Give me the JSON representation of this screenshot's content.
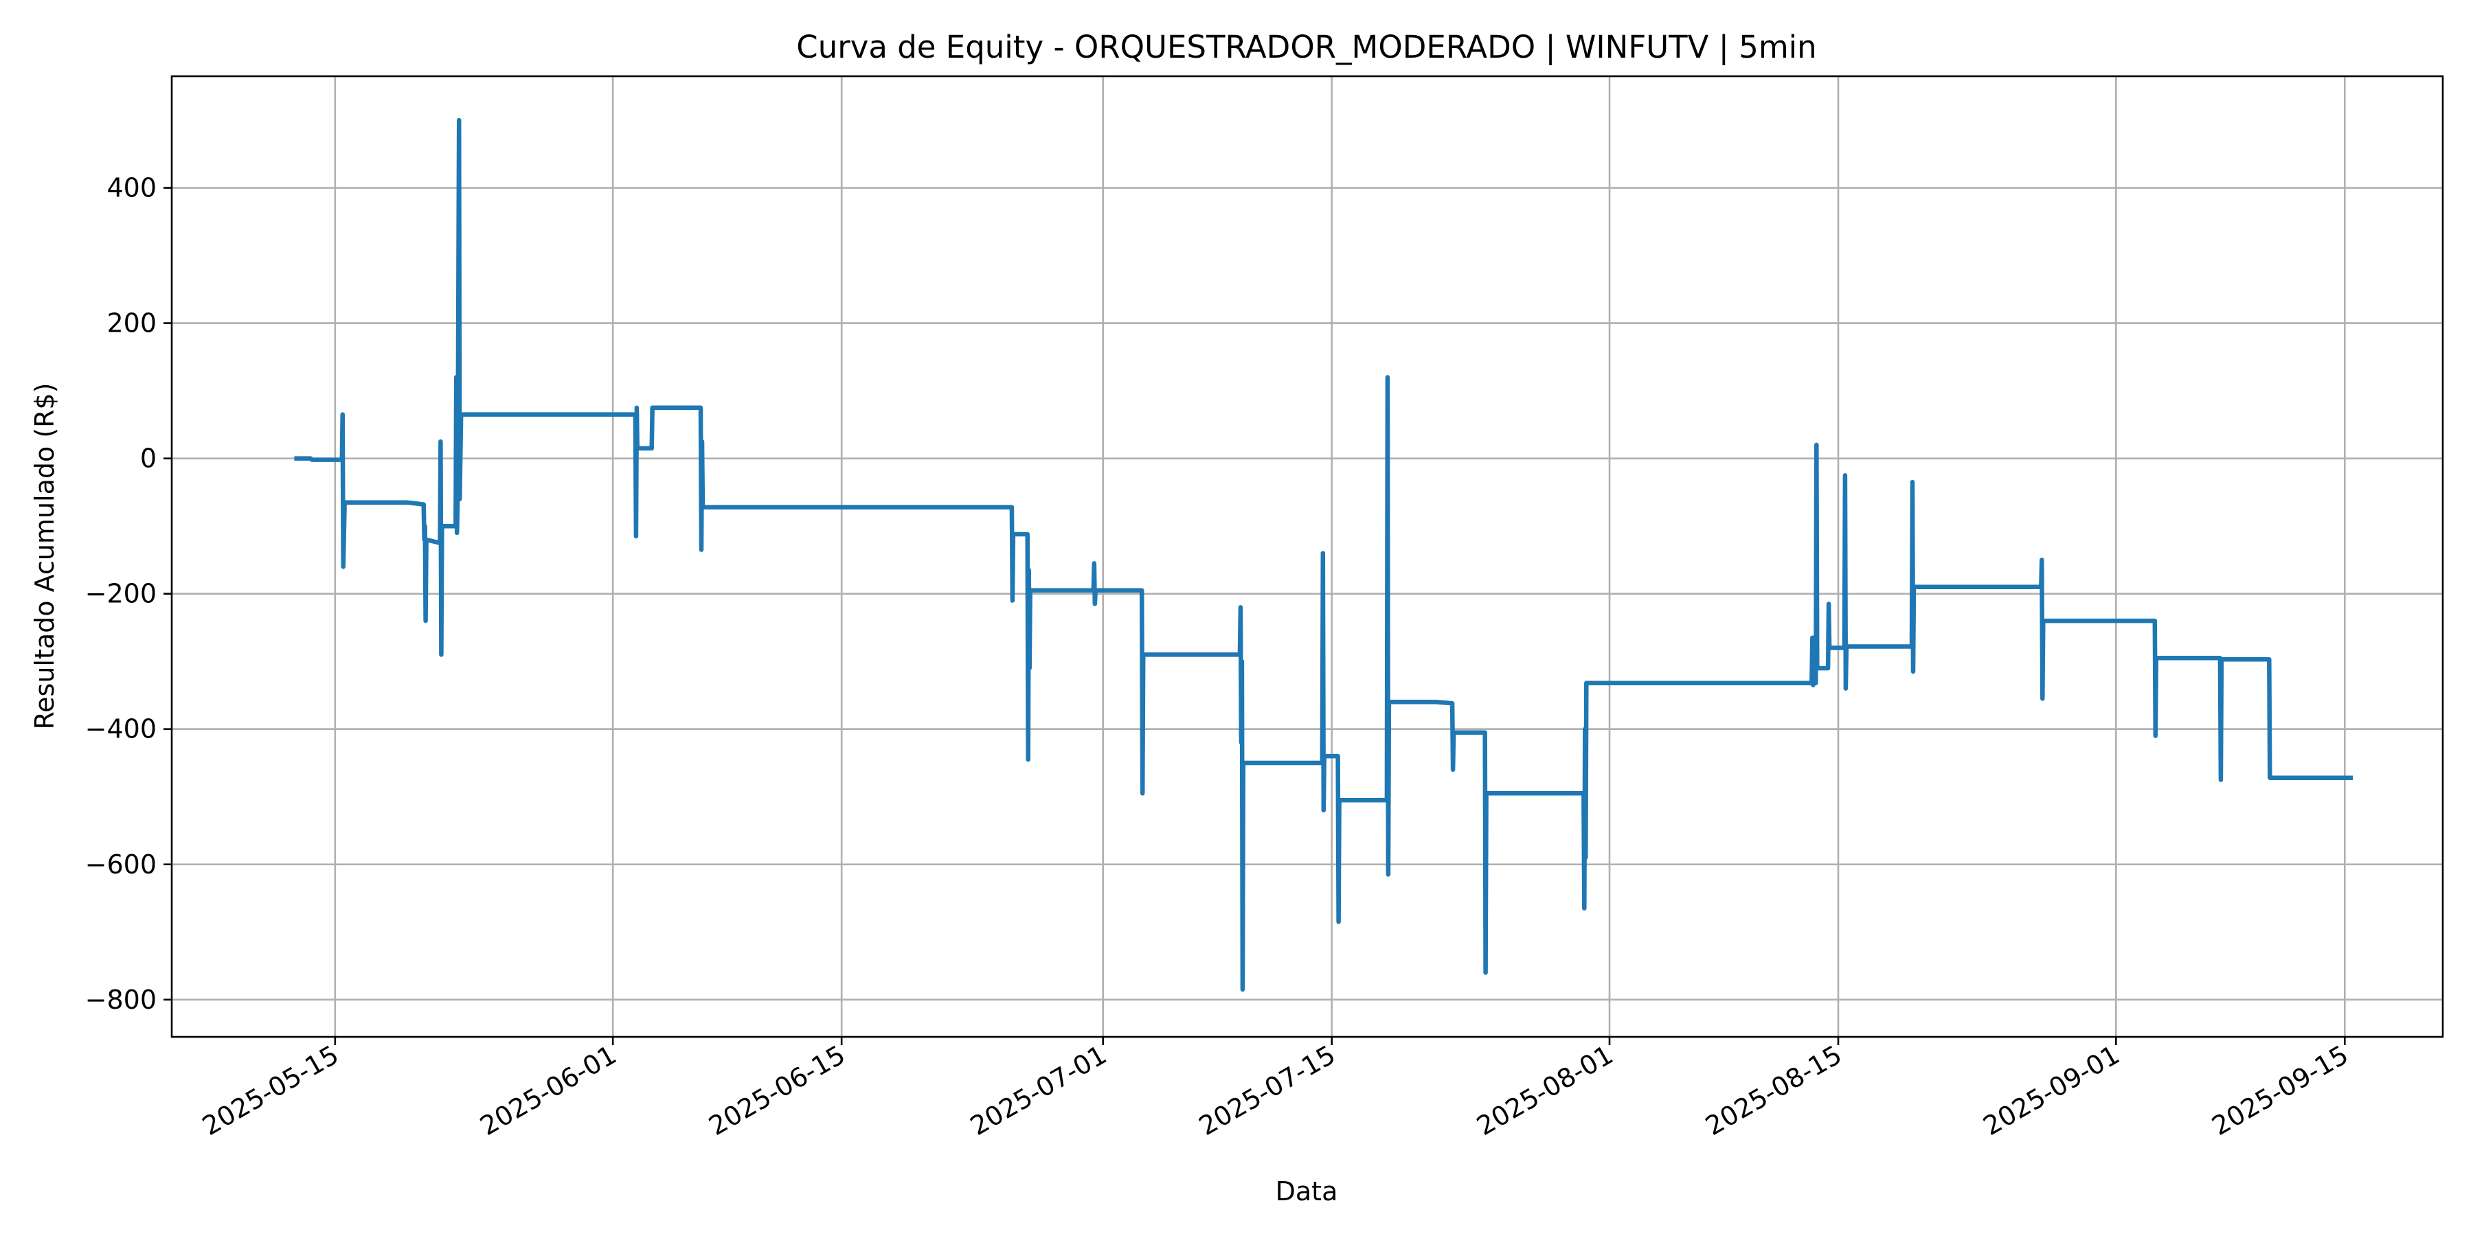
{
  "chart_data": {
    "type": "line",
    "title": "Curva de Equity - ORQUESTRADOR_MODERADO | WINFUTV | 5min",
    "xlabel": "Data",
    "ylabel": "Resultado Acumulado (R$)",
    "x_is_date": true,
    "xlim": [
      "2025-05-05",
      "2025-09-21"
    ],
    "ylim": [
      -855,
      565
    ],
    "x_ticks": [
      "2025-05-15",
      "2025-06-01",
      "2025-06-15",
      "2025-07-01",
      "2025-07-15",
      "2025-08-01",
      "2025-08-15",
      "2025-09-01",
      "2025-09-15"
    ],
    "y_ticks": [
      {
        "value": 400,
        "label": "400"
      },
      {
        "value": 200,
        "label": "200"
      },
      {
        "value": 0,
        "label": "0"
      },
      {
        "value": -200,
        "label": "−200"
      },
      {
        "value": -400,
        "label": "−400"
      },
      {
        "value": -600,
        "label": "−600"
      },
      {
        "value": -800,
        "label": "−800"
      }
    ],
    "grid": true,
    "color": "#1f77b4",
    "series": [
      {
        "values": [
          [
            "2025-05-12 12:00",
            0
          ],
          [
            "2025-05-13 12:00",
            0
          ],
          [
            "2025-05-13 14:00",
            -2
          ],
          [
            "2025-05-15 10:00",
            -2
          ],
          [
            "2025-05-15 11:00",
            65
          ],
          [
            "2025-05-15 12:00",
            -160
          ],
          [
            "2025-05-15 14:00",
            -65
          ],
          [
            "2025-05-19 10:00",
            -65
          ],
          [
            "2025-05-20 10:00",
            -68
          ],
          [
            "2025-05-20 11:00",
            -120
          ],
          [
            "2025-05-20 12:00",
            -100
          ],
          [
            "2025-05-20 13:00",
            -240
          ],
          [
            "2025-05-20 14:00",
            -120
          ],
          [
            "2025-05-21 10:00",
            -125
          ],
          [
            "2025-05-21 11:00",
            25
          ],
          [
            "2025-05-21 12:00",
            -290
          ],
          [
            "2025-05-21 13:00",
            -100
          ],
          [
            "2025-05-22 09:00",
            -100
          ],
          [
            "2025-05-22 10:00",
            120
          ],
          [
            "2025-05-22 11:00",
            -110
          ],
          [
            "2025-05-22 12:00",
            -60
          ],
          [
            "2025-05-22 14:00",
            500
          ],
          [
            "2025-05-22 15:00",
            -60
          ],
          [
            "2025-05-22 17:00",
            65
          ],
          [
            "2025-06-02 09:00",
            65
          ],
          [
            "2025-06-02 10:00",
            -115
          ],
          [
            "2025-06-02 11:00",
            75
          ],
          [
            "2025-06-02 12:00",
            15
          ],
          [
            "2025-06-03 09:00",
            15
          ],
          [
            "2025-06-03 10:00",
            75
          ],
          [
            "2025-06-06 09:00",
            75
          ],
          [
            "2025-06-06 10:00",
            -135
          ],
          [
            "2025-06-06 11:00",
            25
          ],
          [
            "2025-06-06 12:00",
            -72
          ],
          [
            "2025-06-25 10:00",
            -72
          ],
          [
            "2025-06-25 11:00",
            -210
          ],
          [
            "2025-06-25 12:00",
            -112
          ],
          [
            "2025-06-26 09:00",
            -112
          ],
          [
            "2025-06-26 10:00",
            -445
          ],
          [
            "2025-06-26 11:00",
            -165
          ],
          [
            "2025-06-26 12:00",
            -310
          ],
          [
            "2025-06-26 13:00",
            -195
          ],
          [
            "2025-06-30 10:00",
            -195
          ],
          [
            "2025-06-30 11:00",
            -155
          ],
          [
            "2025-06-30 12:00",
            -215
          ],
          [
            "2025-06-30 13:00",
            -195
          ],
          [
            "2025-07-03 09:00",
            -195
          ],
          [
            "2025-07-03 10:00",
            -495
          ],
          [
            "2025-07-03 11:00",
            -290
          ],
          [
            "2025-07-09 09:00",
            -290
          ],
          [
            "2025-07-09 10:00",
            -220
          ],
          [
            "2025-07-09 11:00",
            -420
          ],
          [
            "2025-07-09 12:00",
            -300
          ],
          [
            "2025-07-09 13:00",
            -785
          ],
          [
            "2025-07-09 14:00",
            -450
          ],
          [
            "2025-07-14 10:00",
            -450
          ],
          [
            "2025-07-14 11:00",
            -140
          ],
          [
            "2025-07-14 12:00",
            -520
          ],
          [
            "2025-07-14 13:00",
            -440
          ],
          [
            "2025-07-15 09:00",
            -440
          ],
          [
            "2025-07-15 10:00",
            -685
          ],
          [
            "2025-07-15 11:00",
            -505
          ],
          [
            "2025-07-18 09:00",
            -505
          ],
          [
            "2025-07-18 10:00",
            120
          ],
          [
            "2025-07-18 11:00",
            -615
          ],
          [
            "2025-07-18 12:00",
            -360
          ],
          [
            "2025-07-21 09:00",
            -360
          ],
          [
            "2025-07-22 09:00",
            -362
          ],
          [
            "2025-07-22 10:00",
            -460
          ],
          [
            "2025-07-22 11:00",
            -405
          ],
          [
            "2025-07-24 09:00",
            -405
          ],
          [
            "2025-07-24 10:00",
            -760
          ],
          [
            "2025-07-24 11:00",
            -495
          ],
          [
            "2025-07-30 10:00",
            -495
          ],
          [
            "2025-07-30 11:00",
            -665
          ],
          [
            "2025-07-30 12:00",
            -400
          ],
          [
            "2025-07-30 13:00",
            -590
          ],
          [
            "2025-07-30 14:00",
            -332
          ],
          [
            "2025-08-13 09:00",
            -332
          ],
          [
            "2025-08-13 10:00",
            -265
          ],
          [
            "2025-08-13 11:00",
            -335
          ],
          [
            "2025-08-13 12:00",
            -332
          ],
          [
            "2025-08-13 15:00",
            -332
          ],
          [
            "2025-08-13 16:00",
            20
          ],
          [
            "2025-08-13 17:00",
            -310
          ],
          [
            "2025-08-14 09:00",
            -310
          ],
          [
            "2025-08-14 10:00",
            -215
          ],
          [
            "2025-08-14 11:00",
            -280
          ],
          [
            "2025-08-15 09:00",
            -280
          ],
          [
            "2025-08-15 10:00",
            -25
          ],
          [
            "2025-08-15 11:00",
            -340
          ],
          [
            "2025-08-15 12:00",
            -278
          ],
          [
            "2025-08-19 12:00",
            -278
          ],
          [
            "2025-08-19 13:00",
            -35
          ],
          [
            "2025-08-19 14:00",
            -315
          ],
          [
            "2025-08-19 15:00",
            -190
          ],
          [
            "2025-08-27 10:00",
            -190
          ],
          [
            "2025-08-27 11:00",
            -150
          ],
          [
            "2025-08-27 12:00",
            -355
          ],
          [
            "2025-08-27 13:00",
            -240
          ],
          [
            "2025-09-03 09:00",
            -240
          ],
          [
            "2025-09-03 10:00",
            -410
          ],
          [
            "2025-09-03 11:00",
            -295
          ],
          [
            "2025-09-07 09:00",
            -295
          ],
          [
            "2025-09-07 10:00",
            -475
          ],
          [
            "2025-09-07 11:00",
            -297
          ],
          [
            "2025-09-10 09:00",
            -297
          ],
          [
            "2025-09-10 10:00",
            -472
          ],
          [
            "2025-09-15 12:00",
            -472
          ]
        ]
      }
    ]
  }
}
